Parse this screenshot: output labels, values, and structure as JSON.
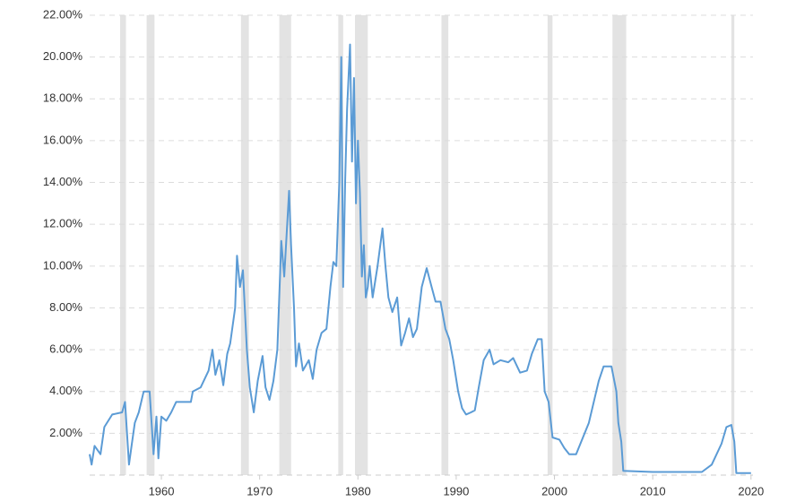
{
  "chart_data": {
    "type": "line",
    "x": [
      1952.7,
      1952.9,
      1953.2,
      1953.8,
      1954.2,
      1955.0,
      1956.0,
      1956.3,
      1956.5,
      1956.7,
      1957.0,
      1957.3,
      1957.7,
      1958.2,
      1958.8,
      1959.0,
      1959.2,
      1959.5,
      1959.7,
      1960.0,
      1960.5,
      1961.0,
      1961.5,
      1963.0,
      1963.2,
      1964.0,
      1964.8,
      1965.2,
      1965.5,
      1965.9,
      1966.3,
      1966.7,
      1967.0,
      1967.5,
      1967.7,
      1968.0,
      1968.3,
      1968.7,
      1969.0,
      1969.4,
      1969.8,
      1970.3,
      1970.6,
      1971.0,
      1971.4,
      1971.8,
      1972.2,
      1972.5,
      1972.8,
      1973.0,
      1973.2,
      1973.5,
      1973.7,
      1974.0,
      1974.4,
      1975.0,
      1975.4,
      1975.8,
      1976.3,
      1976.8,
      1977.2,
      1977.5,
      1977.8,
      1978.1,
      1978.3,
      1978.5,
      1978.7,
      1978.9,
      1979.2,
      1979.4,
      1979.6,
      1979.8,
      1980.0,
      1980.2,
      1980.4,
      1980.6,
      1980.8,
      1981.0,
      1981.2,
      1981.5,
      1982.0,
      1982.5,
      1982.8,
      1983.1,
      1983.5,
      1984.0,
      1984.4,
      1984.8,
      1985.2,
      1985.6,
      1986.0,
      1986.5,
      1987.0,
      1987.5,
      1987.9,
      1988.4,
      1988.9,
      1989.3,
      1989.7,
      1990.2,
      1990.6,
      1991.0,
      1991.5,
      1991.9,
      1992.3,
      1992.8,
      1993.4,
      1993.8,
      1994.5,
      1995.3,
      1995.8,
      1996.5,
      1997.2,
      1997.7,
      1998.3,
      1998.7,
      1999.0,
      1999.4,
      1999.8,
      2000.5,
      2001.0,
      2001.5,
      2002.2,
      2003.5,
      2004.5,
      2005.0,
      2005.8,
      2006.3,
      2006.5,
      2006.8,
      2007.0,
      2010.0,
      2015.0,
      2016.0,
      2017.0,
      2017.5,
      2018.0,
      2018.3,
      2018.5,
      2020.0
    ],
    "values": [
      1.0,
      0.5,
      1.4,
      1.0,
      2.3,
      2.9,
      3.0,
      3.5,
      2.0,
      0.5,
      1.5,
      2.5,
      3.0,
      4.0,
      4.0,
      2.5,
      1.0,
      2.8,
      0.8,
      2.8,
      2.6,
      3.0,
      3.5,
      3.5,
      4.0,
      4.2,
      5.0,
      6.0,
      4.8,
      5.5,
      4.3,
      5.8,
      6.3,
      8.0,
      10.5,
      9.0,
      9.8,
      6.0,
      4.2,
      3.0,
      4.5,
      5.7,
      4.2,
      3.6,
      4.5,
      6.0,
      11.2,
      9.5,
      12.0,
      13.6,
      11.0,
      8.0,
      5.2,
      6.3,
      5.0,
      5.5,
      4.6,
      6.0,
      6.8,
      7.0,
      9.0,
      10.2,
      10.0,
      14.0,
      20.0,
      9.0,
      14.0,
      17.5,
      20.6,
      15.0,
      19.0,
      13.0,
      16.0,
      13.5,
      9.5,
      11.0,
      8.5,
      9.0,
      10.0,
      8.5,
      10.0,
      11.8,
      10.0,
      8.5,
      7.8,
      8.5,
      6.2,
      6.8,
      7.5,
      6.6,
      7.0,
      9.0,
      9.9,
      9.0,
      8.3,
      8.3,
      7.0,
      6.5,
      5.5,
      4.0,
      3.2,
      2.9,
      3.0,
      3.1,
      4.2,
      5.5,
      6.0,
      5.3,
      5.5,
      5.4,
      5.6,
      4.9,
      5.0,
      5.8,
      6.5,
      6.5,
      4.0,
      3.5,
      1.8,
      1.7,
      1.3,
      1.0,
      1.0,
      2.5,
      4.5,
      5.2,
      5.2,
      4.0,
      2.5,
      1.6,
      0.2,
      0.15,
      0.15,
      0.5,
      1.5,
      2.3,
      2.4,
      1.6,
      0.1,
      0.1
    ],
    "color": "#5b9bd5",
    "recessions": [
      [
        1955.8,
        1956.4
      ],
      [
        1958.5,
        1959.3
      ],
      [
        1968.1,
        1968.9
      ],
      [
        1972.0,
        1973.2
      ],
      [
        1978.0,
        1978.5
      ],
      [
        1979.7,
        1981.0
      ],
      [
        1988.5,
        1989.2
      ],
      [
        1999.3,
        1999.8
      ],
      [
        2005.9,
        2007.3
      ],
      [
        2018.0,
        2018.3
      ]
    ],
    "recession_color": "#e3e3e3",
    "xlim": [
      1952.7,
      2020.2
    ],
    "xticks": [
      1960,
      1970,
      1980,
      1990,
      2000,
      2010,
      2020
    ],
    "ylim": [
      0,
      22
    ],
    "yticks": [
      {
        "value": 2,
        "label": "2.00%"
      },
      {
        "value": 4,
        "label": "4.00%"
      },
      {
        "value": 6,
        "label": "6.00%"
      },
      {
        "value": 8,
        "label": "8.00%"
      },
      {
        "value": 10,
        "label": "10.00%"
      },
      {
        "value": 12,
        "label": "12.00%"
      },
      {
        "value": 14,
        "label": "14.00%"
      },
      {
        "value": 16,
        "label": "16.00%"
      },
      {
        "value": 18,
        "label": "18.00%"
      },
      {
        "value": 20,
        "label": "20.00%"
      },
      {
        "value": 22,
        "label": "22.00%"
      }
    ],
    "grid": true
  }
}
